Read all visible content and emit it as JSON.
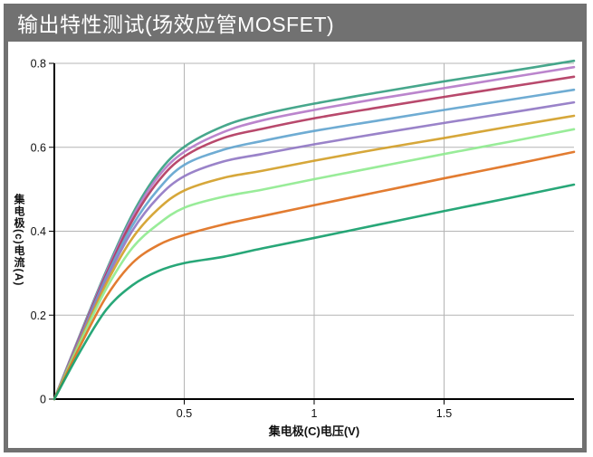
{
  "window": {
    "title": "输出特性测试(场效应管MOSFET)",
    "frame_color": "#717171",
    "title_text_color": "#ffffff",
    "background_color": "#ffffff"
  },
  "chart_data": {
    "type": "line",
    "title": "",
    "xlabel": "集电极(C)电压(V)",
    "ylabel": "集电极(c)电流(A)",
    "xlim": [
      0,
      2.0
    ],
    "ylim": [
      0,
      0.8
    ],
    "x_ticks": [
      0.5,
      1,
      1.5
    ],
    "y_ticks": [
      0,
      0.2,
      0.4,
      0.6,
      0.8
    ],
    "grid": true,
    "legend": "none",
    "axis_color": "#000000",
    "grid_color": "#b4b4b4",
    "x": [
      0,
      0.1,
      0.2,
      0.3,
      0.4,
      0.5,
      0.65,
      0.8,
      1.0,
      1.25,
      1.5,
      1.75,
      2.0
    ],
    "series": [
      {
        "name": "curve-1",
        "color": "#379f82",
        "values": [
          0,
          0.155,
          0.306,
          0.44,
          0.539,
          0.601,
          0.65,
          0.678,
          0.704,
          0.731,
          0.757,
          0.781,
          0.806
        ]
      },
      {
        "name": "curve-2",
        "color": "#b57bc9",
        "values": [
          0,
          0.153,
          0.302,
          0.433,
          0.53,
          0.589,
          0.636,
          0.664,
          0.689,
          0.716,
          0.741,
          0.766,
          0.791
        ]
      },
      {
        "name": "curve-3",
        "color": "#b23a60",
        "values": [
          0,
          0.15,
          0.297,
          0.425,
          0.519,
          0.578,
          0.622,
          0.644,
          0.669,
          0.695,
          0.72,
          0.744,
          0.768
        ]
      },
      {
        "name": "curve-4",
        "color": "#63a5cf",
        "values": [
          0,
          0.147,
          0.291,
          0.413,
          0.5,
          0.558,
          0.594,
          0.615,
          0.639,
          0.664,
          0.689,
          0.713,
          0.737
        ]
      },
      {
        "name": "curve-5",
        "color": "#9178c4",
        "values": [
          0,
          0.145,
          0.284,
          0.401,
          0.481,
          0.531,
          0.566,
          0.584,
          0.607,
          0.633,
          0.658,
          0.682,
          0.707
        ]
      },
      {
        "name": "curve-6",
        "color": "#d3a029",
        "values": [
          0,
          0.14,
          0.275,
          0.383,
          0.453,
          0.497,
          0.527,
          0.544,
          0.568,
          0.596,
          0.622,
          0.649,
          0.675
        ]
      },
      {
        "name": "curve-7",
        "color": "#90ea90",
        "values": [
          0,
          0.136,
          0.263,
          0.36,
          0.417,
          0.456,
          0.482,
          0.499,
          0.524,
          0.554,
          0.584,
          0.613,
          0.643
        ]
      },
      {
        "name": "curve-8",
        "color": "#e0711f",
        "values": [
          0,
          0.127,
          0.244,
          0.324,
          0.367,
          0.391,
          0.416,
          0.436,
          0.462,
          0.494,
          0.526,
          0.557,
          0.589
        ]
      },
      {
        "name": "curve-9",
        "color": "#16a06d",
        "values": [
          0,
          0.114,
          0.213,
          0.271,
          0.305,
          0.324,
          0.339,
          0.359,
          0.384,
          0.416,
          0.448,
          0.479,
          0.511
        ]
      }
    ]
  }
}
